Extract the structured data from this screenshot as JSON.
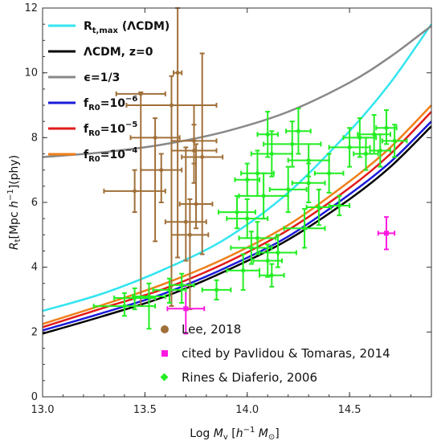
{
  "chart_data": {
    "type": "scatter",
    "xlabel_parts": {
      "pre": "Log ",
      "M": "M",
      "sub": "v",
      "post1": " [",
      "h": "h",
      "exp": "−1",
      "M2": "M",
      "sun": "⊙",
      "post2": "]"
    },
    "ylabel_parts": {
      "R": "R",
      "sub": "t",
      "pre": "[Mpc ",
      "h": "h",
      "exp": "−1",
      "post": "](phy)"
    },
    "xlim": [
      13.0,
      14.9
    ],
    "ylim": [
      0,
      12
    ],
    "x_ticks": [
      13.0,
      13.5,
      14.0,
      14.5
    ],
    "x_tick_labels": [
      "13.0",
      "13.5",
      "14.0",
      "14.5"
    ],
    "y_ticks": [
      0,
      2,
      4,
      6,
      8,
      10,
      12
    ],
    "y_tick_labels": [
      "0",
      "2",
      "4",
      "6",
      "8",
      "10",
      "12"
    ],
    "grid": false,
    "legend_position_lines": "top-left",
    "legend_position_points": "bottom-center",
    "curves": [
      {
        "key": "rtmax",
        "name_html": [
          "R",
          "t,max",
          " (ΛCDM)"
        ],
        "color": "#33e5f0",
        "x": [
          13.0,
          13.3,
          13.6,
          13.9,
          14.2,
          14.5,
          14.7,
          14.9
        ],
        "y": [
          2.65,
          3.2,
          3.95,
          4.9,
          6.3,
          8.2,
          9.7,
          11.5
        ]
      },
      {
        "key": "lcdm",
        "name": "ΛCDM, z=0",
        "color": "#000000",
        "x": [
          13.0,
          13.3,
          13.6,
          13.9,
          14.2,
          14.5,
          14.7,
          14.9
        ],
        "y": [
          1.95,
          2.5,
          3.1,
          3.9,
          4.85,
          6.1,
          7.1,
          8.35
        ]
      },
      {
        "key": "eps",
        "name": "ϵ=1/3",
        "color": "#888888",
        "x": [
          13.0,
          13.3,
          13.6,
          13.9,
          14.2,
          14.5,
          14.7,
          14.9
        ],
        "y": [
          7.4,
          7.55,
          7.8,
          8.2,
          8.8,
          9.7,
          10.5,
          11.45
        ]
      },
      {
        "key": "fr6",
        "name_html": [
          "f",
          "R0",
          "=10",
          "−6"
        ],
        "color": "#1a1ad9",
        "x": [
          13.0,
          13.3,
          13.6,
          13.9,
          14.2,
          14.5,
          14.7,
          14.9
        ],
        "y": [
          2.05,
          2.6,
          3.2,
          4.0,
          4.95,
          6.25,
          7.25,
          8.5
        ]
      },
      {
        "key": "fr5",
        "name_html": [
          "f",
          "R0",
          "=10",
          "−5"
        ],
        "color": "#e31a1a",
        "x": [
          13.0,
          13.3,
          13.6,
          13.9,
          14.2,
          14.5,
          14.7,
          14.9
        ],
        "y": [
          2.15,
          2.75,
          3.35,
          4.15,
          5.15,
          6.45,
          7.5,
          8.8
        ]
      },
      {
        "key": "fr4",
        "name_html": [
          "f",
          "R0",
          "=10",
          "−4"
        ],
        "color": "#f07f1a",
        "x": [
          13.0,
          13.3,
          13.6,
          13.9,
          14.2,
          14.5,
          14.7,
          14.9
        ],
        "y": [
          2.25,
          2.85,
          3.5,
          4.3,
          5.3,
          6.65,
          7.7,
          9.0
        ]
      }
    ],
    "point_series": [
      {
        "name": "Lee, 2018",
        "color": "#a0703a",
        "marker": "circle",
        "points": [
          {
            "x": 13.45,
            "y": 6.35,
            "xerr": 0.15,
            "ylo": 5.7,
            "yhi": 7.0
          },
          {
            "x": 13.48,
            "y": 9.35,
            "xerr": 0.12,
            "ylo": 2.8,
            "yhi": 9.4
          },
          {
            "x": 13.55,
            "y": 8.0,
            "xerr": 0.12,
            "ylo": 4.8,
            "yhi": 8.6
          },
          {
            "x": 13.58,
            "y": 7.0,
            "xerr": 0.1,
            "ylo": 6.0,
            "yhi": 7.5
          },
          {
            "x": 13.63,
            "y": 9.0,
            "xerr": 0.22,
            "ylo": 2.8,
            "yhi": 9.9
          },
          {
            "x": 13.66,
            "y": 10.0,
            "xerr": 0.02,
            "ylo": 4.3,
            "yhi": 12.0
          },
          {
            "x": 13.7,
            "y": 5.4,
            "xerr": 0.1,
            "ylo": 4.2,
            "yhi": 7.7
          },
          {
            "x": 13.72,
            "y": 5.0,
            "xerr": 0.09,
            "ylo": 2.7,
            "yhi": 6.1
          },
          {
            "x": 13.74,
            "y": 7.9,
            "xerr": 0.11,
            "ylo": 7.2,
            "yhi": 9.0
          },
          {
            "x": 13.74,
            "y": 7.6,
            "xerr": 0.11,
            "ylo": 6.6,
            "yhi": 8.4
          },
          {
            "x": 13.78,
            "y": 7.4,
            "xerr": 0.1,
            "ylo": 4.4,
            "yhi": 10.6
          },
          {
            "x": 13.75,
            "y": 5.95,
            "xerr": 0.08,
            "ylo": 5.2,
            "yhi": 7.8
          }
        ]
      },
      {
        "name": "cited by Pavlidou & Tomaras, 2014",
        "color": "#ff1ae0",
        "marker": "square",
        "points": [
          {
            "x": 13.7,
            "y": 2.72,
            "xerr": 0.09,
            "ylo": 1.95,
            "yhi": 3.45
          },
          {
            "x": 14.68,
            "y": 5.05,
            "xerr": 0.04,
            "ylo": 4.55,
            "yhi": 5.55
          }
        ]
      },
      {
        "name": "Rines & Diaferio, 2006",
        "color": "#22ee22",
        "marker": "diamond",
        "points": [
          {
            "x": 13.4,
            "y": 2.8,
            "xerr": 0.15,
            "ylo": 2.5,
            "yhi": 3.2
          },
          {
            "x": 13.45,
            "y": 3.05,
            "xerr": 0.1,
            "ylo": 2.7,
            "yhi": 3.35
          },
          {
            "x": 13.52,
            "y": 3.1,
            "xerr": 0.08,
            "ylo": 2.1,
            "yhi": 3.5
          },
          {
            "x": 13.62,
            "y": 3.3,
            "xerr": 0.08,
            "ylo": 2.9,
            "yhi": 3.65
          },
          {
            "x": 13.68,
            "y": 3.45,
            "xerr": 0.06,
            "ylo": 2.9,
            "yhi": 3.8
          },
          {
            "x": 13.85,
            "y": 3.3,
            "xerr": 0.07,
            "ylo": 3.0,
            "yhi": 3.6
          },
          {
            "x": 13.98,
            "y": 3.9,
            "xerr": 0.08,
            "ylo": 3.3,
            "yhi": 4.4
          },
          {
            "x": 14.02,
            "y": 4.6,
            "xerr": 0.1,
            "ylo": 4.1,
            "yhi": 5.1
          },
          {
            "x": 14.05,
            "y": 4.9,
            "xerr": 0.09,
            "ylo": 4.4,
            "yhi": 5.4
          },
          {
            "x": 14.1,
            "y": 4.2,
            "xerr": 0.07,
            "ylo": 3.7,
            "yhi": 4.7
          },
          {
            "x": 14.12,
            "y": 3.75,
            "xerr": 0.06,
            "ylo": 3.4,
            "yhi": 4.1
          },
          {
            "x": 14.15,
            "y": 4.45,
            "xerr": 0.09,
            "ylo": 4.0,
            "yhi": 5.0
          },
          {
            "x": 14.0,
            "y": 5.5,
            "xerr": 0.1,
            "ylo": 4.9,
            "yhi": 6.1
          },
          {
            "x": 14.08,
            "y": 6.2,
            "xerr": 0.12,
            "ylo": 5.5,
            "yhi": 6.9
          },
          {
            "x": 14.05,
            "y": 6.9,
            "xerr": 0.08,
            "ylo": 6.2,
            "yhi": 7.6
          },
          {
            "x": 14.12,
            "y": 7.5,
            "xerr": 0.1,
            "ylo": 6.8,
            "yhi": 8.2
          },
          {
            "x": 14.1,
            "y": 8.1,
            "xerr": 0.05,
            "ylo": 7.4,
            "yhi": 8.8
          },
          {
            "x": 14.2,
            "y": 6.4,
            "xerr": 0.09,
            "ylo": 5.7,
            "yhi": 7.1
          },
          {
            "x": 14.22,
            "y": 7.8,
            "xerr": 0.14,
            "ylo": 7.1,
            "yhi": 8.5
          },
          {
            "x": 14.25,
            "y": 8.2,
            "xerr": 0.06,
            "ylo": 7.5,
            "yhi": 8.9
          },
          {
            "x": 14.28,
            "y": 5.2,
            "xerr": 0.1,
            "ylo": 4.6,
            "yhi": 5.8
          },
          {
            "x": 14.3,
            "y": 6.6,
            "xerr": 0.08,
            "ylo": 6.0,
            "yhi": 7.2
          },
          {
            "x": 14.35,
            "y": 5.85,
            "xerr": 0.06,
            "ylo": 5.3,
            "yhi": 6.4
          },
          {
            "x": 14.4,
            "y": 6.9,
            "xerr": 0.07,
            "ylo": 6.3,
            "yhi": 7.5
          },
          {
            "x": 14.45,
            "y": 5.9,
            "xerr": 0.05,
            "ylo": 5.6,
            "yhi": 6.2
          },
          {
            "x": 14.5,
            "y": 7.7,
            "xerr": 0.1,
            "ylo": 7.1,
            "yhi": 8.3
          },
          {
            "x": 14.55,
            "y": 8.0,
            "xerr": 0.08,
            "ylo": 7.4,
            "yhi": 8.6
          },
          {
            "x": 14.58,
            "y": 7.5,
            "xerr": 0.06,
            "ylo": 7.0,
            "yhi": 8.0
          },
          {
            "x": 14.62,
            "y": 8.1,
            "xerr": 0.08,
            "ylo": 7.5,
            "yhi": 8.7
          },
          {
            "x": 14.65,
            "y": 7.6,
            "xerr": 0.05,
            "ylo": 7.1,
            "yhi": 8.1
          },
          {
            "x": 14.72,
            "y": 7.9,
            "xerr": 0.06,
            "ylo": 7.4,
            "yhi": 8.4
          },
          {
            "x": 14.68,
            "y": 8.3,
            "xerr": 0.05,
            "ylo": 7.8,
            "yhi": 8.85
          },
          {
            "x": 13.95,
            "y": 5.7,
            "xerr": 0.09,
            "ylo": 5.2,
            "yhi": 6.2
          },
          {
            "x": 14.0,
            "y": 6.7,
            "xerr": 0.06,
            "ylo": 6.2,
            "yhi": 7.2
          },
          {
            "x": 14.3,
            "y": 7.3,
            "xerr": 0.1,
            "ylo": 6.8,
            "yhi": 7.8
          }
        ]
      }
    ]
  }
}
